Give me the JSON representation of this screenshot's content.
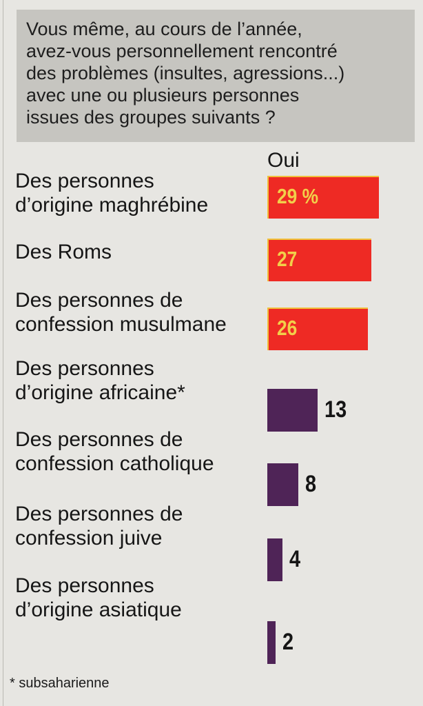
{
  "question": {
    "lines": [
      "Vous même, au cours de l’année,",
      "avez-vous personnellement rencontré",
      "des problèmes (insultes, agressions...)",
      "avec une ou plusieurs personnes",
      "issues des groupes suivants ?"
    ]
  },
  "chart_data": {
    "type": "bar",
    "orientation": "horizontal",
    "series": [
      {
        "name": "Oui",
        "values": [
          29,
          27,
          26,
          13,
          8,
          4,
          2
        ]
      }
    ],
    "categories": [
      "Des personnes d’origine maghrébine",
      "Des Roms",
      "Des personnes de confession musulmane",
      "Des personnes d’origine africaine*",
      "Des personnes de confession catholique",
      "Des personnes de confession juive",
      "Des personnes d’origine asiatique"
    ],
    "category_lines": [
      [
        "Des personnes",
        "d’origine maghrébine"
      ],
      [
        "Des Roms"
      ],
      [
        "Des personnes de",
        "confession musulmane"
      ],
      [
        "Des personnes",
        "d’origine africaine*"
      ],
      [
        "Des personnes de",
        "confession catholique"
      ],
      [
        "Des personnes de",
        "confession juive"
      ],
      [
        "Des personnes",
        "d’origine asiatique"
      ]
    ],
    "value_labels": [
      "29 %",
      "27",
      "26",
      "13",
      "8",
      "4",
      "2"
    ],
    "bar_colors": [
      "#ee2a24",
      "#ee2a24",
      "#ee2a24",
      "#4f2457",
      "#4f2457",
      "#4f2457",
      "#4f2457"
    ],
    "column_header": "Oui",
    "unit": "%"
  },
  "footnote": "* subsaharienne",
  "colors": {
    "highlight_bar": "#ee2a24",
    "other_bar": "#4f2457",
    "inside_label": "#f2cf4a",
    "question_box": "#c6c5c0",
    "background": "#e7e6e2"
  }
}
